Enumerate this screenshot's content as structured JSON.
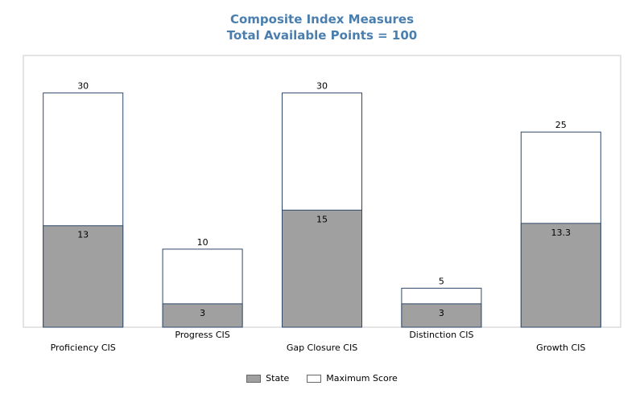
{
  "chart_data": {
    "type": "bar",
    "title": "Composite Index Measures",
    "subtitle": "Total Available Points = 100",
    "categories": [
      "Proficiency CIS",
      "Progress CIS",
      "Gap Closure CIS",
      "Distinction CIS",
      "Growth CIS"
    ],
    "series": [
      {
        "name": "State",
        "values": [
          13,
          3,
          15,
          3,
          13.3
        ],
        "color": "#a0a0a0"
      },
      {
        "name": "Maximum Score",
        "values": [
          30,
          10,
          30,
          5,
          25
        ],
        "color": "#ffffff"
      }
    ],
    "ylim": [
      0,
      30
    ],
    "grid": false,
    "legend_position": "bottom",
    "overlay": true,
    "border_color": "#2e4a6b"
  }
}
